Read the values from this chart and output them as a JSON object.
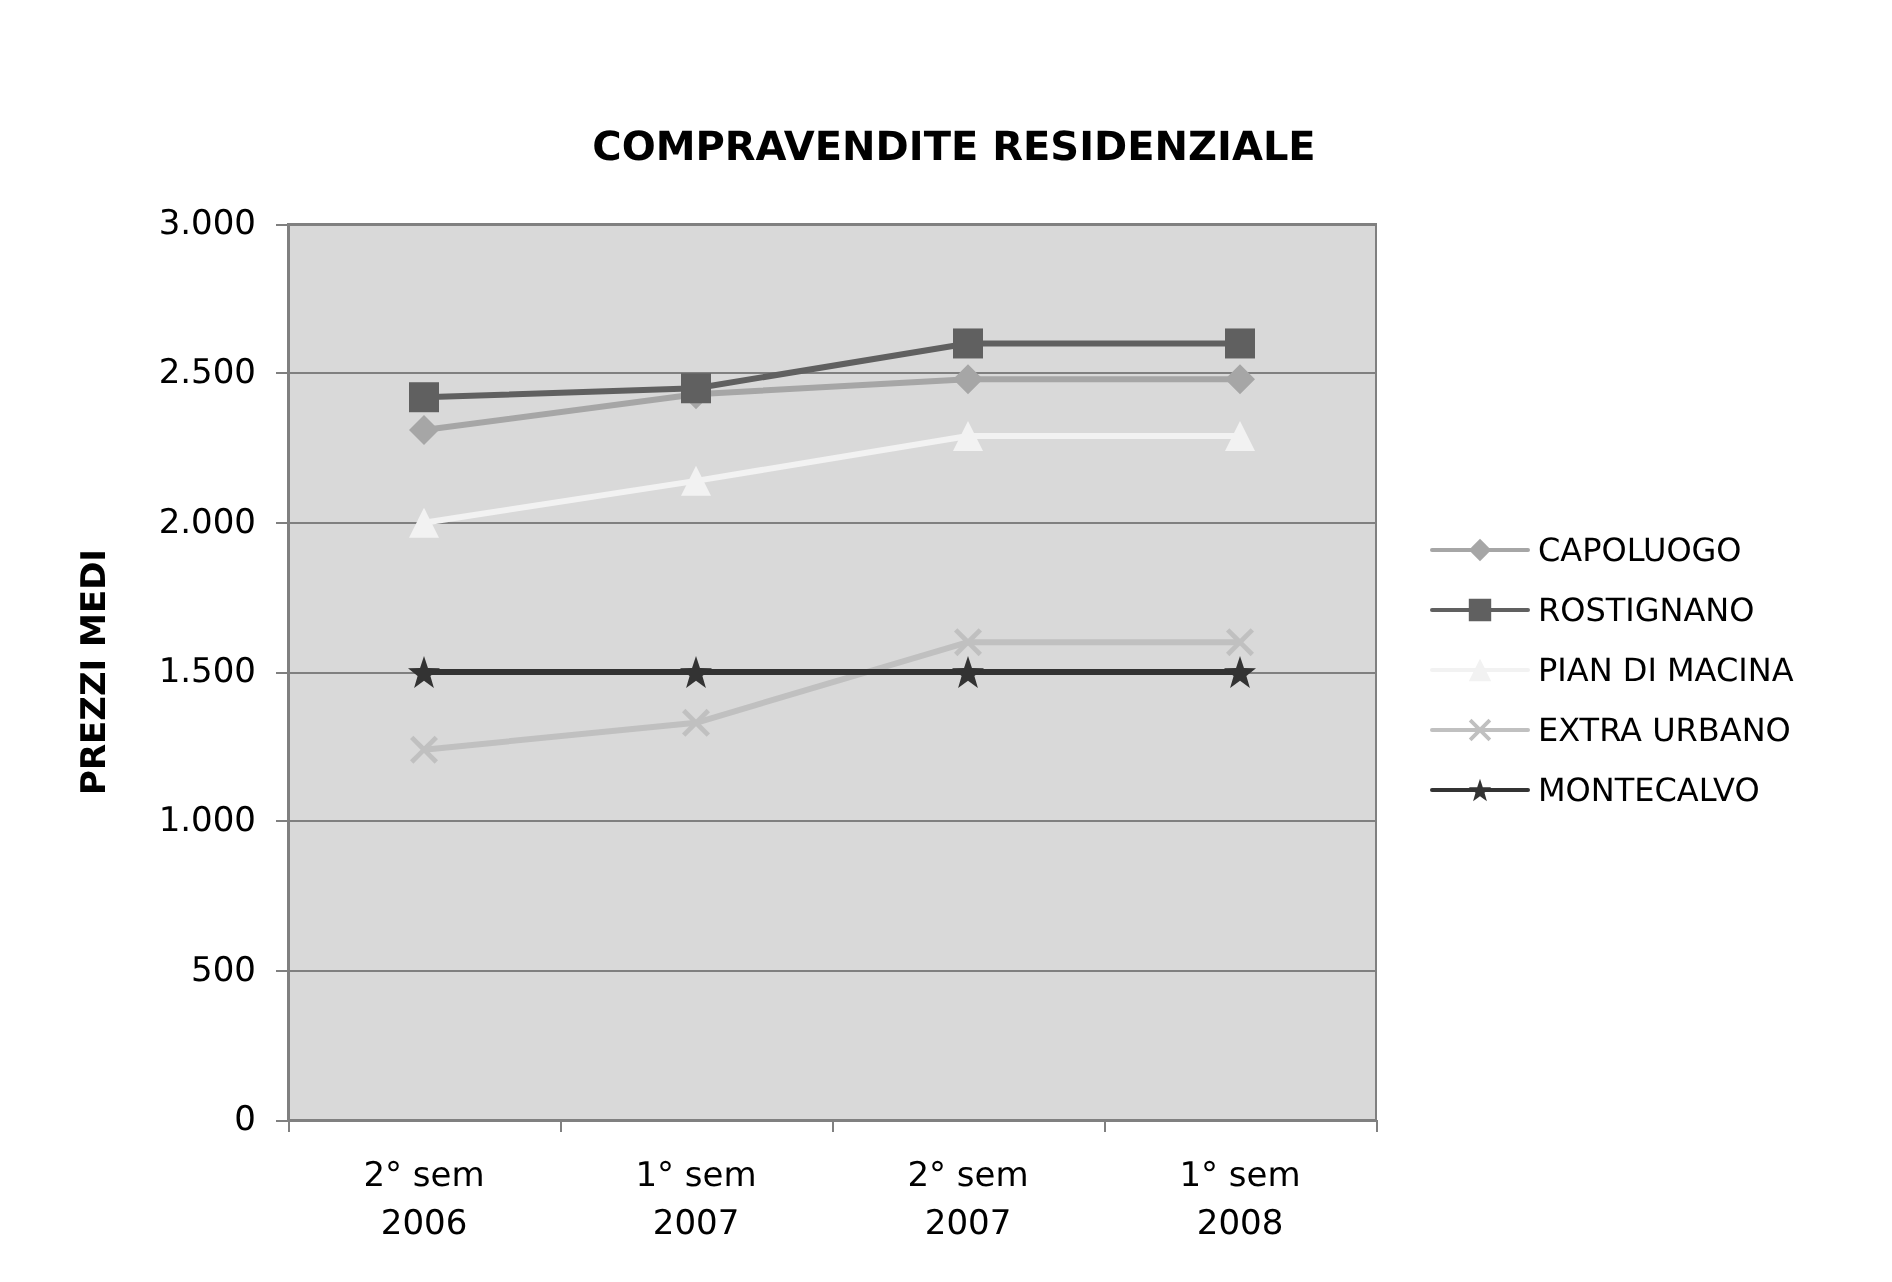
{
  "chart_data": {
    "type": "line",
    "title": "COMPRAVENDITE RESIDENZIALE",
    "ylabel": "PREZZI MEDI",
    "categories": [
      "2° sem\n2006",
      "1° sem\n2007",
      "2° sem\n2007",
      "1° sem\n2008"
    ],
    "series": [
      {
        "name": "CAPOLUOGO",
        "color": "#a6a6a6",
        "marker": "diamond",
        "values": [
          2310,
          2430,
          2480,
          2480
        ]
      },
      {
        "name": "ROSTIGNANO",
        "color": "#606060",
        "marker": "square",
        "values": [
          2420,
          2450,
          2600,
          2600
        ]
      },
      {
        "name": "PIAN DI MACINA",
        "color": "#f2f2f2",
        "marker": "triangle",
        "values": [
          2000,
          2140,
          2290,
          2290
        ]
      },
      {
        "name": "EXTRA URBANO",
        "color": "#c0c0c0",
        "marker": "cross",
        "values": [
          1240,
          1330,
          1600,
          1600
        ]
      },
      {
        "name": "MONTECALVO",
        "color": "#333333",
        "marker": "star",
        "values": [
          1500,
          1500,
          1500,
          1500
        ]
      }
    ],
    "ylim": [
      0,
      3000
    ],
    "yticks": [
      0,
      500,
      {
        "value": 1000,
        "label": "1.000"
      },
      {
        "value": 1500,
        "label": "1.500"
      },
      {
        "value": 2000,
        "label": "2.000"
      },
      {
        "value": 2500,
        "label": "2.500"
      },
      {
        "value": 3000,
        "label": "3.000"
      }
    ],
    "grid": "y",
    "legend": "right",
    "line_style": "solid"
  }
}
